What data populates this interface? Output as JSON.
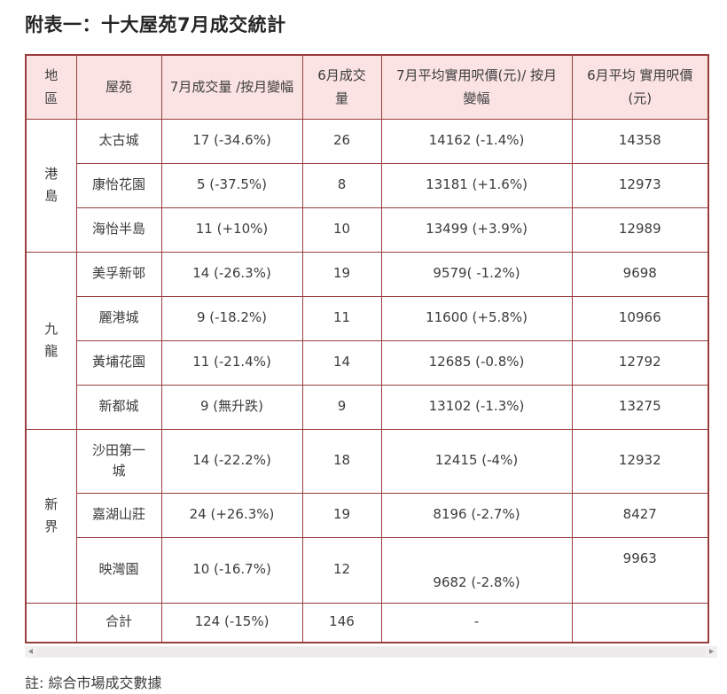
{
  "title": "附表一：十大屋苑7月成交統計",
  "note": "註: 綜合市場成交數據",
  "colors": {
    "border": "#993d3d",
    "header_bg": "#fbe3e3",
    "text": "#3c3c3c"
  },
  "scrollbar": {
    "left_arrow": "scroll-left",
    "right_arrow": "scroll-right"
  },
  "table": {
    "columns": [
      "地區",
      "屋苑",
      "7月成交量 /按月變幅",
      "6月成交量",
      "7月平均實用呎價(元)/ 按月變幅",
      "6月平均 實用呎價(元)"
    ],
    "groups": [
      {
        "region": "港島",
        "rows": [
          {
            "estate": "太古城",
            "jul_volume": "17 (-34.6%)",
            "jun_volume": "26",
            "jul_price": "14162 (-1.4%)",
            "jun_price": "14358"
          },
          {
            "estate": "康怡花園",
            "jul_volume": "5 (-37.5%)",
            "jun_volume": "8",
            "jul_price": "13181 (+1.6%)",
            "jun_price": "12973"
          },
          {
            "estate": "海怡半島",
            "jul_volume": "11 (+10%)",
            "jun_volume": "10",
            "jul_price": "13499 (+3.9%)",
            "jun_price": "12989"
          }
        ]
      },
      {
        "region": "九龍",
        "rows": [
          {
            "estate": "美孚新邨",
            "jul_volume": "14 (-26.3%)",
            "jun_volume": "19",
            "jul_price": "9579( -1.2%)",
            "jun_price": "9698"
          },
          {
            "estate": "麗港城",
            "jul_volume": "9 (-18.2%)",
            "jun_volume": "11",
            "jul_price": "11600 (+5.8%)",
            "jun_price": "10966"
          },
          {
            "estate": "黃埔花園",
            "jul_volume": "11 (-21.4%)",
            "jun_volume": "14",
            "jul_price": "12685 (-0.8%)",
            "jun_price": "12792"
          },
          {
            "estate": "新都城",
            "jul_volume": "9 (無升跌)",
            "jun_volume": "9",
            "jul_price": "13102 (-1.3%)",
            "jun_price": "13275"
          }
        ]
      },
      {
        "region": "新界",
        "rows": [
          {
            "estate": "沙田第一城",
            "jul_volume": "14 (-22.2%)",
            "jun_volume": "18",
            "jul_price": "12415 (-4%)",
            "jun_price": "12932"
          },
          {
            "estate": "嘉湖山莊",
            "jul_volume": "24 (+26.3%)",
            "jun_volume": "19",
            "jul_price": "8196 (-2.7%)",
            "jun_price": "8427"
          },
          {
            "estate": "映灣園",
            "jul_volume": "10 (-16.7%)",
            "jun_volume": "12",
            "jul_price": "9682 (-2.8%)",
            "jun_price": "9963"
          }
        ]
      }
    ],
    "total": {
      "region": "",
      "estate": "合計",
      "jul_volume": "124 (-15%)",
      "jun_volume": "146",
      "jul_price": "-",
      "jun_price": ""
    }
  }
}
